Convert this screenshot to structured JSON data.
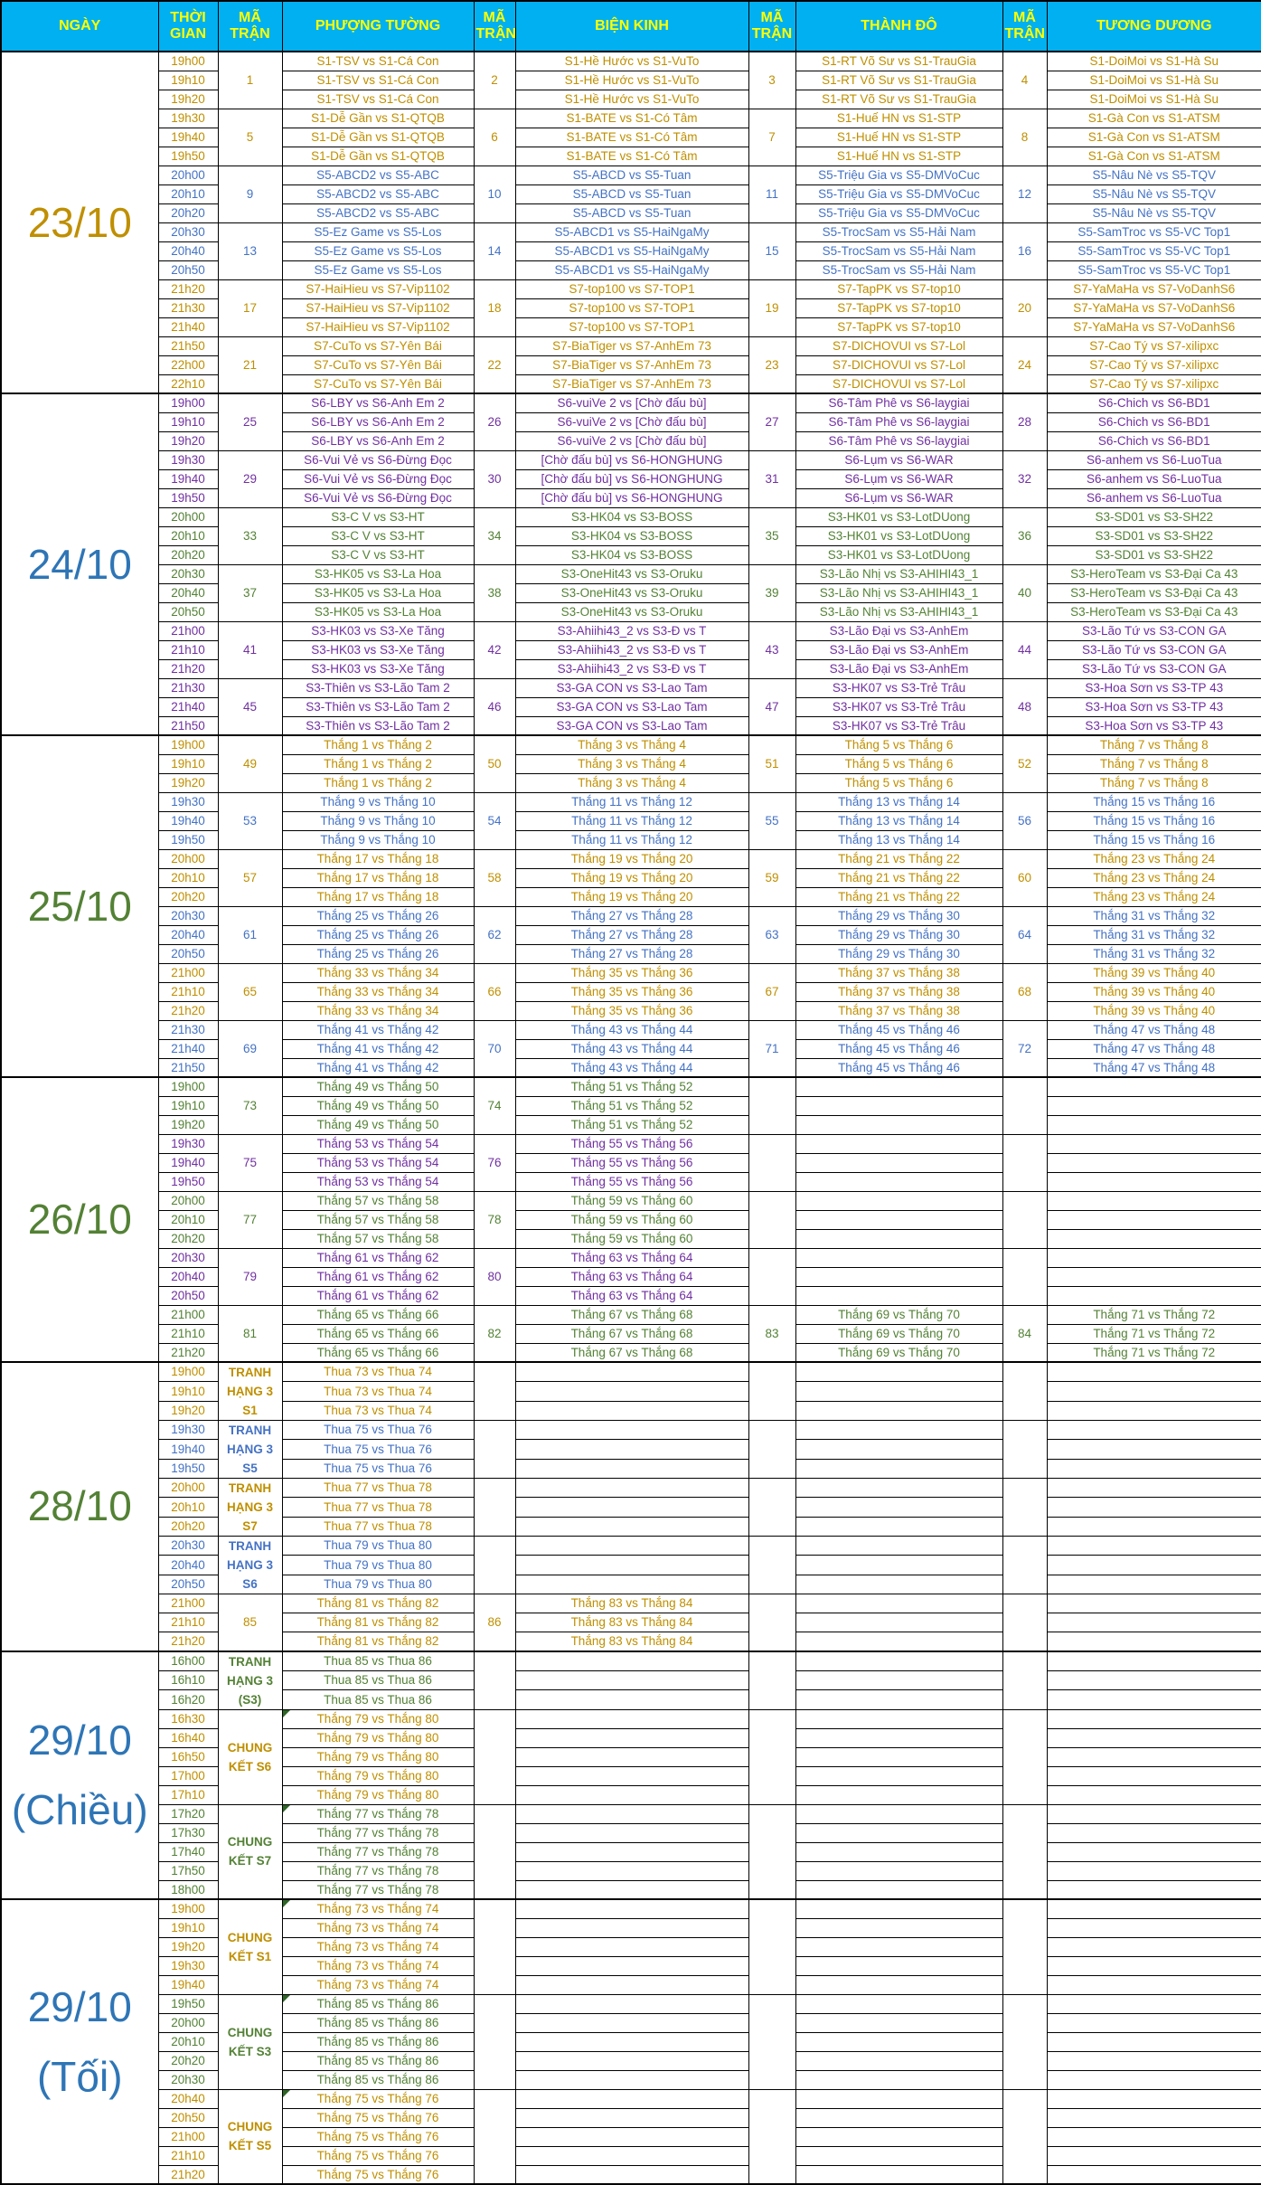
{
  "header": {
    "date": "NGÀY",
    "time": "THỜI GIAN",
    "code": "MÃ TRẬN",
    "arenas": [
      "PHƯỢNG TƯỜNG",
      "BIỆN KINH",
      "THÀNH ĐÔ",
      "TƯƠNG DƯƠNG"
    ]
  },
  "colors": {
    "header_bg": "#00B0F0",
    "header_text": "#FFFF00",
    "border": "#000000",
    "note_marker": "#2F6627",
    "text": {
      "gold": "#BF8F00",
      "blue": "#4472C4",
      "purple": "#7030A0",
      "green": "#538135"
    },
    "date_text": {
      "gold": "#BF8F00",
      "blue": "#2E75B6",
      "green": "#538135"
    }
  },
  "days": [
    {
      "date_lines": [
        "23/10"
      ],
      "date_color": "gold",
      "groups": [
        {
          "times": [
            "19h00",
            "19h10",
            "19h20"
          ],
          "color": "gold",
          "cells": [
            [
              "1",
              "S1-TSV vs S1-Cá Con"
            ],
            [
              "2",
              "S1-Hề Hước vs S1-VuTo"
            ],
            [
              "3",
              "S1-RT Võ Sư vs S1-TrauGia"
            ],
            [
              "4",
              "S1-DoiMoi vs S1-Hà Su"
            ]
          ]
        },
        {
          "times": [
            "19h30",
            "19h40",
            "19h50"
          ],
          "color": "gold",
          "cells": [
            [
              "5",
              "S1-Dễ Gần vs S1-QTQB"
            ],
            [
              "6",
              "S1-BATE vs S1-Có Tâm"
            ],
            [
              "7",
              "S1-Huế HN vs S1-STP"
            ],
            [
              "8",
              "S1-Gà Con vs S1-ATSM"
            ]
          ]
        },
        {
          "times": [
            "20h00",
            "20h10",
            "20h20"
          ],
          "color": "blue",
          "cells": [
            [
              "9",
              "S5-ABCD2 vs S5-ABC"
            ],
            [
              "10",
              "S5-ABCD vs S5-Tuan"
            ],
            [
              "11",
              "S5-Triệu Gia vs S5-DMVoCuc"
            ],
            [
              "12",
              "S5-Nâu Nè vs S5-TQV"
            ]
          ]
        },
        {
          "times": [
            "20h30",
            "20h40",
            "20h50"
          ],
          "color": "blue",
          "cells": [
            [
              "13",
              "S5-Ez Game vs S5-Los"
            ],
            [
              "14",
              "S5-ABCD1 vs S5-HaiNgaMy"
            ],
            [
              "15",
              "S5-TrocSam vs S5-Hải Nam"
            ],
            [
              "16",
              "S5-SamTroc vs S5-VC Top1"
            ]
          ]
        },
        {
          "times": [
            "21h20",
            "21h30",
            "21h40"
          ],
          "color": "gold",
          "cells": [
            [
              "17",
              "S7-HaiHieu vs S7-Vip1102"
            ],
            [
              "18",
              "S7-top100 vs S7-TOP1"
            ],
            [
              "19",
              "S7-TapPK vs S7-top10"
            ],
            [
              "20",
              "S7-YaMaHa vs S7-VoDanhS6"
            ]
          ]
        },
        {
          "times": [
            "21h50",
            "22h00",
            "22h10"
          ],
          "color": "gold",
          "cells": [
            [
              "21",
              "S7-CuTo vs S7-Yên Bái"
            ],
            [
              "22",
              "S7-BiaTiger vs S7-AnhEm 73"
            ],
            [
              "23",
              "S7-DICHOVUI vs S7-Lol"
            ],
            [
              "24",
              "S7-Cao Tý vs S7-xilipxc"
            ]
          ]
        }
      ]
    },
    {
      "date_lines": [
        "24/10"
      ],
      "date_color": "blue",
      "groups": [
        {
          "times": [
            "19h00",
            "19h10",
            "19h20"
          ],
          "color": "purple",
          "cells": [
            [
              "25",
              "S6-LBY vs S6-Anh Em 2"
            ],
            [
              "26",
              "S6-vuiVe 2 vs [Chờ đấu bù]"
            ],
            [
              "27",
              "S6-Tâm Phê vs S6-laygiai"
            ],
            [
              "28",
              "S6-Chich vs S6-BD1"
            ]
          ]
        },
        {
          "times": [
            "19h30",
            "19h40",
            "19h50"
          ],
          "color": "purple",
          "cells": [
            [
              "29",
              "S6-Vui Vẻ vs S6-Đừng Đọc"
            ],
            [
              "30",
              "[Chờ đấu bù] vs S6-HONGHUNG"
            ],
            [
              "31",
              "S6-Lụm vs S6-WAR"
            ],
            [
              "32",
              "S6-anhem vs S6-LuoTua"
            ]
          ]
        },
        {
          "times": [
            "20h00",
            "20h10",
            "20h20"
          ],
          "color": "green",
          "cells": [
            [
              "33",
              "S3-C V vs S3-HT"
            ],
            [
              "34",
              "S3-HK04 vs S3-BOSS"
            ],
            [
              "35",
              "S3-HK01 vs S3-LotDUong"
            ],
            [
              "36",
              "S3-SD01 vs S3-SH22"
            ]
          ]
        },
        {
          "times": [
            "20h30",
            "20h40",
            "20h50"
          ],
          "color": "green",
          "cells": [
            [
              "37",
              "S3-HK05 vs S3-La Hoa"
            ],
            [
              "38",
              "S3-OneHit43 vs S3-Oruku"
            ],
            [
              "39",
              "S3-Lão Nhị vs S3-AHIHI43_1"
            ],
            [
              "40",
              "S3-HeroTeam vs S3-Đại Ca 43"
            ]
          ]
        },
        {
          "times": [
            "21h00",
            "21h10",
            "21h20"
          ],
          "color": "purple",
          "cells": [
            [
              "41",
              "S3-HK03 vs S3-Xe Tăng"
            ],
            [
              "42",
              "S3-Ahiihi43_2 vs S3-Đ vs T"
            ],
            [
              "43",
              "S3-Lão Đại vs S3-AnhEm"
            ],
            [
              "44",
              "S3-Lão Tứ vs S3-CON GA"
            ]
          ]
        },
        {
          "times": [
            "21h30",
            "21h40",
            "21h50"
          ],
          "color": "purple",
          "cells": [
            [
              "45",
              "S3-Thiên vs S3-Lão Tam 2"
            ],
            [
              "46",
              "S3-GA CON vs S3-Lao Tam"
            ],
            [
              "47",
              "S3-HK07 vs S3-Trẻ Trâu"
            ],
            [
              "48",
              "S3-Hoa Sơn vs S3-TP 43"
            ]
          ]
        }
      ]
    },
    {
      "date_lines": [
        "25/10"
      ],
      "date_color": "green",
      "groups": [
        {
          "times": [
            "19h00",
            "19h10",
            "19h20"
          ],
          "color": "gold",
          "cells": [
            [
              "49",
              "Thắng 1 vs Thắng 2"
            ],
            [
              "50",
              "Thắng 3 vs Thắng 4"
            ],
            [
              "51",
              "Thắng 5 vs Thắng 6"
            ],
            [
              "52",
              "Thắng 7 vs Thắng 8"
            ]
          ]
        },
        {
          "times": [
            "19h30",
            "19h40",
            "19h50"
          ],
          "color": "blue",
          "cells": [
            [
              "53",
              "Thắng 9 vs Thắng 10"
            ],
            [
              "54",
              "Thắng 11 vs Thắng 12"
            ],
            [
              "55",
              "Thắng 13 vs Thắng 14"
            ],
            [
              "56",
              "Thắng 15 vs Thắng 16"
            ]
          ]
        },
        {
          "times": [
            "20h00",
            "20h10",
            "20h20"
          ],
          "color": "gold",
          "cells": [
            [
              "57",
              "Thắng 17 vs Thắng 18"
            ],
            [
              "58",
              "Thắng 19 vs Thắng 20"
            ],
            [
              "59",
              "Thắng 21 vs Thắng 22"
            ],
            [
              "60",
              "Thắng 23 vs Thắng 24"
            ]
          ]
        },
        {
          "times": [
            "20h30",
            "20h40",
            "20h50"
          ],
          "color": "blue",
          "cells": [
            [
              "61",
              "Thắng 25 vs Thắng 26"
            ],
            [
              "62",
              "Thắng 27 vs Thắng 28"
            ],
            [
              "63",
              "Thắng 29 vs Thắng 30"
            ],
            [
              "64",
              "Thắng 31 vs Thắng 32"
            ]
          ]
        },
        {
          "times": [
            "21h00",
            "21h10",
            "21h20"
          ],
          "color": "gold",
          "cells": [
            [
              "65",
              "Thắng 33 vs Thắng 34"
            ],
            [
              "66",
              "Thắng 35 vs Thắng 36"
            ],
            [
              "67",
              "Thắng 37 vs Thắng 38"
            ],
            [
              "68",
              "Thắng 39 vs Thắng 40"
            ]
          ]
        },
        {
          "times": [
            "21h30",
            "21h40",
            "21h50"
          ],
          "color": "blue",
          "cells": [
            [
              "69",
              "Thắng 41 vs Thắng 42"
            ],
            [
              "70",
              "Thắng 43 vs Thắng 44"
            ],
            [
              "71",
              "Thắng 45 vs Thắng 46"
            ],
            [
              "72",
              "Thắng 47 vs Thắng 48"
            ]
          ]
        }
      ]
    },
    {
      "date_lines": [
        "26/10"
      ],
      "date_color": "green",
      "groups": [
        {
          "times": [
            "19h00",
            "19h10",
            "19h20"
          ],
          "color": "green",
          "cells": [
            [
              "73",
              "Thắng 49 vs Thắng 50"
            ],
            [
              "74",
              "Thắng 51 vs Thắng 52"
            ],
            [
              "",
              ""
            ],
            [
              "",
              ""
            ]
          ]
        },
        {
          "times": [
            "19h30",
            "19h40",
            "19h50"
          ],
          "color": "purple",
          "cells": [
            [
              "75",
              "Thắng 53 vs Thắng 54"
            ],
            [
              "76",
              "Thắng 55 vs Thắng 56"
            ],
            [
              "",
              ""
            ],
            [
              "",
              ""
            ]
          ]
        },
        {
          "times": [
            "20h00",
            "20h10",
            "20h20"
          ],
          "color": "green",
          "cells": [
            [
              "77",
              "Thắng 57 vs Thắng 58"
            ],
            [
              "78",
              "Thắng 59 vs Thắng 60"
            ],
            [
              "",
              ""
            ],
            [
              "",
              ""
            ]
          ]
        },
        {
          "times": [
            "20h30",
            "20h40",
            "20h50"
          ],
          "color": "purple",
          "cells": [
            [
              "79",
              "Thắng 61 vs Thắng 62"
            ],
            [
              "80",
              "Thắng 63 vs Thắng 64"
            ],
            [
              "",
              ""
            ],
            [
              "",
              ""
            ]
          ]
        },
        {
          "times": [
            "21h00",
            "21h10",
            "21h20"
          ],
          "color": "green",
          "cells": [
            [
              "81",
              "Thắng 65 vs Thắng 66"
            ],
            [
              "82",
              "Thắng 67 vs Thắng 68"
            ],
            [
              "83",
              "Thắng 69 vs Thắng 70"
            ],
            [
              "84",
              "Thắng 71 vs Thắng 72"
            ]
          ]
        }
      ]
    },
    {
      "date_lines": [
        "28/10"
      ],
      "date_color": "green",
      "groups": [
        {
          "times": [
            "19h00",
            "19h10",
            "19h20"
          ],
          "color": "gold",
          "label": [
            "TRANH",
            "HẠNG 3",
            "S1"
          ],
          "cells": [
            [
              "",
              "Thua 73 vs Thua 74"
            ],
            [
              "",
              ""
            ],
            [
              "",
              ""
            ],
            [
              "",
              ""
            ]
          ]
        },
        {
          "times": [
            "19h30",
            "19h40",
            "19h50"
          ],
          "color": "blue",
          "label": [
            "TRANH",
            "HẠNG 3",
            "S5"
          ],
          "cells": [
            [
              "",
              "Thua 75 vs Thua 76"
            ],
            [
              "",
              ""
            ],
            [
              "",
              ""
            ],
            [
              "",
              ""
            ]
          ]
        },
        {
          "times": [
            "20h00",
            "20h10",
            "20h20"
          ],
          "color": "gold",
          "label": [
            "TRANH",
            "HẠNG 3",
            "S7"
          ],
          "cells": [
            [
              "",
              "Thua 77 vs Thua 78"
            ],
            [
              "",
              ""
            ],
            [
              "",
              ""
            ],
            [
              "",
              ""
            ]
          ]
        },
        {
          "times": [
            "20h30",
            "20h40",
            "20h50"
          ],
          "color": "blue",
          "label": [
            "TRANH",
            "HẠNG 3",
            "S6"
          ],
          "cells": [
            [
              "",
              "Thua 79 vs Thua 80"
            ],
            [
              "",
              ""
            ],
            [
              "",
              ""
            ],
            [
              "",
              ""
            ]
          ]
        },
        {
          "times": [
            "21h00",
            "21h10",
            "21h20"
          ],
          "color": "gold",
          "cells": [
            [
              "85",
              "Thắng 81 vs Thắng 82"
            ],
            [
              "86",
              "Thắng 83 vs Thắng 84"
            ],
            [
              "",
              ""
            ],
            [
              "",
              ""
            ]
          ]
        }
      ]
    },
    {
      "date_lines": [
        "29/10",
        "(Chiều)"
      ],
      "date_color": "blue",
      "groups": [
        {
          "times": [
            "16h00",
            "16h10",
            "16h20"
          ],
          "color": "green",
          "label": [
            "TRANH",
            "HẠNG 3",
            "(S3)"
          ],
          "cells": [
            [
              "",
              "Thua 85 vs Thua 86"
            ],
            [
              "",
              ""
            ],
            [
              "",
              ""
            ],
            [
              "",
              ""
            ]
          ]
        },
        {
          "times": [
            "16h30",
            "16h40",
            "16h50",
            "17h00",
            "17h10"
          ],
          "color": "gold",
          "label": [
            "CHUNG",
            "KẾT S6"
          ],
          "note": true,
          "cells": [
            [
              "",
              "Thắng 79 vs Thắng 80"
            ],
            [
              "",
              ""
            ],
            [
              "",
              ""
            ],
            [
              "",
              ""
            ]
          ]
        },
        {
          "times": [
            "17h20",
            "17h30",
            "17h40",
            "17h50",
            "18h00"
          ],
          "color": "green",
          "label": [
            "CHUNG",
            "KẾT S7"
          ],
          "note": true,
          "cells": [
            [
              "",
              "Thắng 77 vs Thắng 78"
            ],
            [
              "",
              ""
            ],
            [
              "",
              ""
            ],
            [
              "",
              ""
            ]
          ]
        }
      ]
    },
    {
      "date_lines": [
        "29/10",
        "(Tối)"
      ],
      "date_color": "blue",
      "groups": [
        {
          "times": [
            "19h00",
            "19h10",
            "19h20",
            "19h30",
            "19h40"
          ],
          "color": "gold",
          "label": [
            "CHUNG",
            "KẾT S1"
          ],
          "note": true,
          "cells": [
            [
              "",
              "Thắng 73 vs Thắng 74"
            ],
            [
              "",
              ""
            ],
            [
              "",
              ""
            ],
            [
              "",
              ""
            ]
          ]
        },
        {
          "times": [
            "19h50",
            "20h00",
            "20h10",
            "20h20",
            "20h30"
          ],
          "color": "green",
          "label": [
            "CHUNG",
            "KẾT S3"
          ],
          "note": true,
          "cells": [
            [
              "",
              "Thắng 85 vs Thắng 86"
            ],
            [
              "",
              ""
            ],
            [
              "",
              ""
            ],
            [
              "",
              ""
            ]
          ]
        },
        {
          "times": [
            "20h40",
            "20h50",
            "21h00",
            "21h10",
            "21h20"
          ],
          "color": "gold",
          "label": [
            "CHUNG",
            "KẾT S5"
          ],
          "note": true,
          "cells": [
            [
              "",
              "Thắng 75 vs Thắng 76"
            ],
            [
              "",
              ""
            ],
            [
              "",
              ""
            ],
            [
              "",
              ""
            ]
          ]
        }
      ]
    }
  ]
}
